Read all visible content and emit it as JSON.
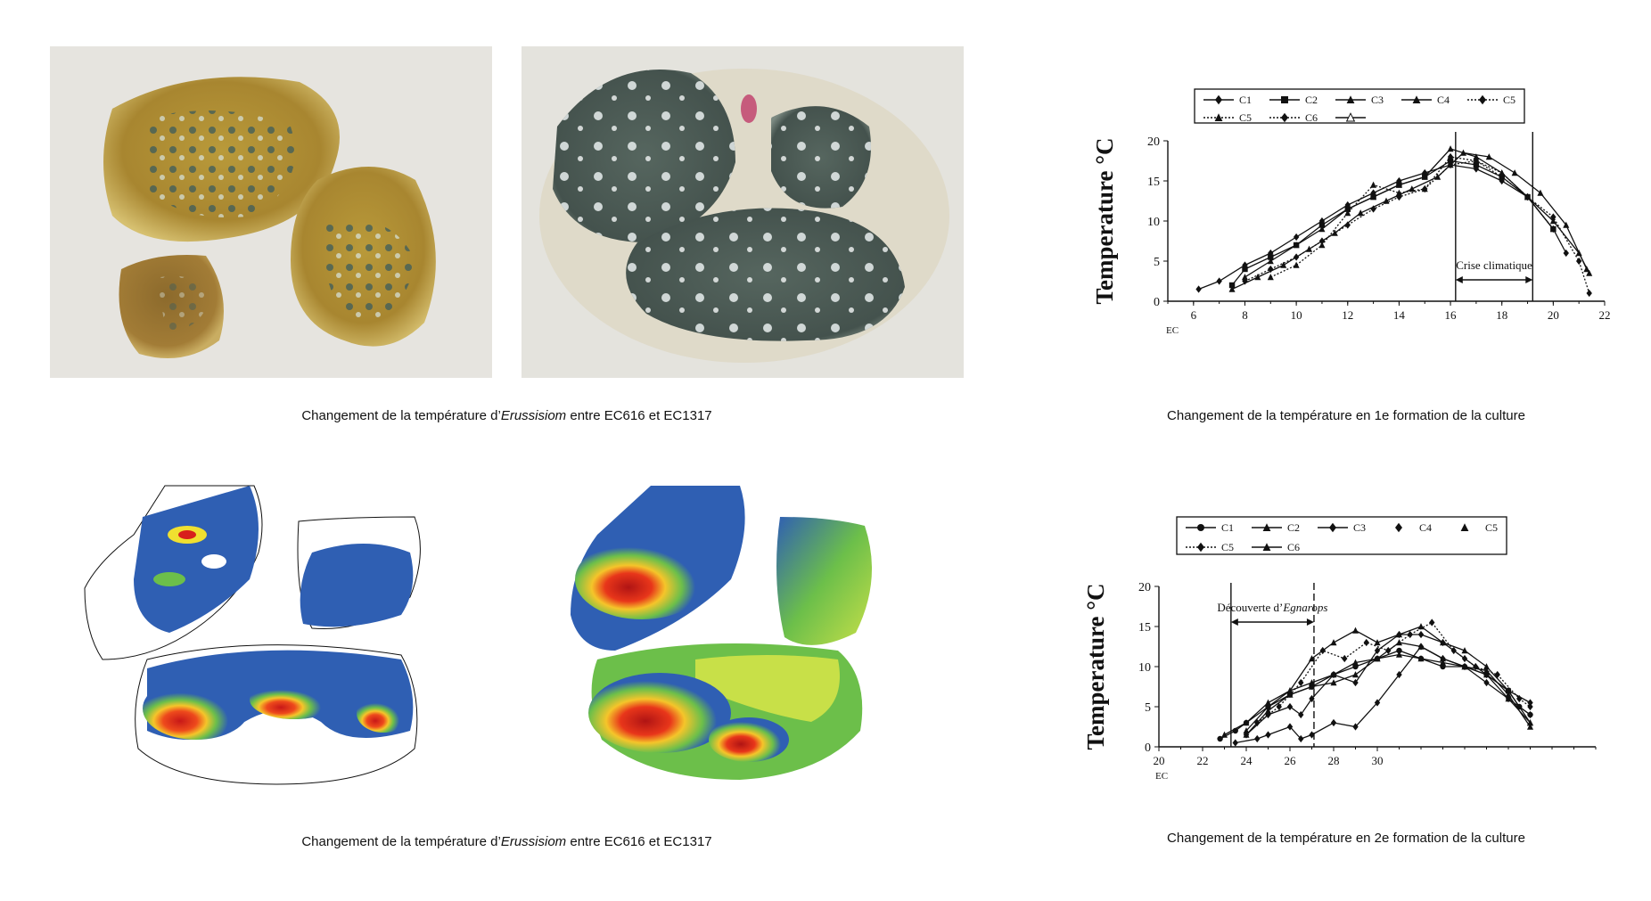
{
  "captions": {
    "photos_top": {
      "prefix": "Changement de la température d’",
      "italic": "Erussisiom",
      "suffix": " entre EC616 et EC1317"
    },
    "maps_bottom": {
      "prefix": "Changement de la température d’",
      "italic": "Erussisiom",
      "suffix": " entre EC616 et EC1317"
    },
    "chart1": "Changement de la température en 1e formation de la culture",
    "chart2": "Changement de la température en 2e formation de la culture"
  },
  "colors": {
    "photo_bg": "#e4e2dc",
    "fruit_yellow": "#b8952f",
    "fruit_brown": "#8a6a2a",
    "mold_green": "#4a5a55",
    "map_blue": "#2f5fb3",
    "map_green": "#6cbf4a",
    "map_yellow": "#f0e030",
    "map_orange": "#f08a20",
    "map_red": "#d8201c"
  },
  "chart_data": [
    {
      "type": "line",
      "title": "",
      "ylabel": "Temperature °C",
      "xlabel": "EC",
      "xlim": [
        5,
        22
      ],
      "ylim": [
        0,
        20
      ],
      "xticks": [
        6,
        8,
        10,
        12,
        14,
        16,
        18,
        20,
        22
      ],
      "yticks": [
        0,
        5,
        10,
        15,
        20
      ],
      "legend": [
        {
          "label": "C1",
          "marker": "diamond",
          "dash": "solid"
        },
        {
          "label": "C2",
          "marker": "square",
          "dash": "solid"
        },
        {
          "label": "C3",
          "marker": "triangle",
          "dash": "solid"
        },
        {
          "label": "C4",
          "marker": "triangle",
          "dash": "solid"
        },
        {
          "label": "C5",
          "marker": "diamond",
          "dash": "dotted"
        },
        {
          "label": "C5",
          "marker": "triangle",
          "dash": "dotted"
        },
        {
          "label": "C6",
          "marker": "diamond",
          "dash": "dotted"
        },
        {
          "label": "",
          "marker": "triangle-open",
          "dash": "solid"
        }
      ],
      "legend_position": "top",
      "annotation": {
        "text": "Crise climatique",
        "x_start": 16.2,
        "x_end": 19.2
      },
      "series": [
        {
          "name": "C1",
          "x": [
            6.2,
            7.0,
            8.0,
            9.0,
            10.0,
            11.0,
            12.0,
            13.0,
            14.0,
            15.0,
            16.0,
            17.0,
            18.0,
            19.0,
            20.0,
            20.5
          ],
          "y": [
            1.5,
            2.5,
            4.5,
            6,
            8,
            10,
            12,
            13.5,
            15,
            16,
            17,
            16.5,
            15,
            13,
            9,
            6
          ]
        },
        {
          "name": "C2",
          "x": [
            7.5,
            8.0,
            9.0,
            10.0,
            11.0,
            12.0,
            13.0,
            14.0,
            15.0,
            16.0,
            17.0,
            18.0,
            19.0,
            20.0
          ],
          "y": [
            2,
            4,
            5.5,
            7,
            9.5,
            11.5,
            13,
            14.5,
            15.5,
            17.5,
            17,
            15.5,
            13,
            9
          ]
        },
        {
          "name": "C3",
          "x": [
            7.5,
            8.5,
            9.5,
            10.5,
            11.5,
            12.5,
            13.5,
            14.5,
            15.5,
            16.5,
            17.5,
            18.5,
            19.5,
            20.5,
            21.3
          ],
          "y": [
            1.5,
            3,
            4.5,
            6.5,
            8.5,
            11,
            12.5,
            14,
            15.5,
            18.5,
            18,
            16,
            13.5,
            9.5,
            4
          ]
        },
        {
          "name": "C4",
          "x": [
            8.0,
            9.0,
            10.0,
            11.0,
            12.0,
            13.0,
            14.0,
            15.0,
            16.0,
            17.0,
            18.0,
            19.0,
            20.0,
            21.0,
            21.4
          ],
          "y": [
            3,
            5,
            7,
            9,
            11.5,
            13,
            14.5,
            15.5,
            19,
            18,
            16,
            13,
            10,
            6,
            3.5
          ]
        },
        {
          "name": "C5",
          "x": [
            8.0,
            9.0,
            10.0,
            11.0,
            12.0,
            13.0,
            14.0,
            15.0,
            16.0,
            17.0,
            18.0,
            19.0,
            20.0,
            21.0,
            21.4
          ],
          "y": [
            2.5,
            4,
            5.5,
            7.5,
            9.5,
            11.5,
            13,
            14,
            18,
            17.5,
            15.5,
            13,
            10.5,
            5,
            1
          ]
        },
        {
          "name": "C6",
          "x": [
            9.0,
            10.0,
            11.0,
            12.0,
            13.0,
            14.0,
            15.0,
            16.0,
            17.0,
            18.0,
            19.0,
            20.0
          ],
          "y": [
            3,
            4.5,
            7,
            11,
            14.5,
            13.5,
            14,
            17,
            17.5,
            16,
            13,
            9
          ]
        }
      ]
    },
    {
      "type": "line",
      "title": "",
      "ylabel": "Temperature °C",
      "xlabel": "EC",
      "xlim": [
        20,
        40
      ],
      "ylim": [
        0,
        20
      ],
      "xticks": [
        20,
        22,
        24,
        26,
        28,
        30
      ],
      "yticks": [
        0,
        5,
        10,
        15,
        20
      ],
      "legend": [
        {
          "label": "C1",
          "marker": "circle",
          "dash": "solid"
        },
        {
          "label": "C2",
          "marker": "triangle",
          "dash": "solid"
        },
        {
          "label": "C3",
          "marker": "diamond",
          "dash": "solid"
        },
        {
          "label": "C4",
          "marker": "diamond",
          "dash": "none"
        },
        {
          "label": "C5",
          "marker": "triangle",
          "dash": "none"
        },
        {
          "label": "C5",
          "marker": "diamond",
          "dash": "dotted"
        },
        {
          "label": "C6",
          "marker": "triangle",
          "dash": "solid"
        }
      ],
      "legend_position": "top",
      "annotation": {
        "text": "Découverte d’",
        "italic": "Egnarops",
        "x_start": 23.3,
        "x_end": 27.1
      },
      "series": [
        {
          "name": "C1",
          "x": [
            22.8,
            23.5,
            24.0,
            25.0,
            26.0,
            27.0,
            28.0,
            29.0,
            30.0,
            31.0,
            32.0,
            33.0,
            34.0,
            35.0,
            36.0,
            36.5,
            37.0
          ],
          "y": [
            1,
            2,
            3,
            5,
            6.5,
            7.5,
            9,
            10,
            11,
            12,
            11,
            10,
            10,
            9,
            7,
            5,
            4
          ]
        },
        {
          "name": "C2",
          "x": [
            23.0,
            24.0,
            25.0,
            26.0,
            27.0,
            28.0,
            29.0,
            30.0,
            31.0,
            32.0,
            33.0,
            34.0,
            35.0,
            36.0,
            37.0
          ],
          "y": [
            1.5,
            3,
            5.5,
            7,
            8,
            9,
            10.5,
            11,
            11.5,
            11,
            10.5,
            10,
            9,
            6,
            3
          ]
        },
        {
          "name": "C3",
          "x": [
            23.5,
            24.5,
            25.0,
            26.0,
            26.5,
            27.0,
            28.0,
            29.0,
            30.0,
            31.0,
            32.0,
            33.0,
            34.0,
            35.0,
            36.0,
            37.0
          ],
          "y": [
            0.5,
            1,
            1.5,
            2.5,
            1,
            1.5,
            3,
            2.5,
            5.5,
            9,
            12.5,
            11,
            10,
            8,
            6,
            4
          ]
        },
        {
          "name": "C4",
          "x": [
            24.0,
            25.0,
            26.0,
            26.5,
            27.0,
            28.0,
            29.0,
            30.0,
            31.0,
            32.0,
            33.0,
            34.0,
            35.0,
            36.0,
            37.0
          ],
          "y": [
            1.5,
            4,
            5,
            4,
            6,
            9,
            8,
            12,
            14,
            14,
            13,
            11,
            9,
            7,
            5.5
          ]
        },
        {
          "name": "C5",
          "x": [
            24.0,
            25.0,
            26.0,
            27.0,
            28.0,
            29.0,
            30.0,
            31.0,
            32.0,
            33.0,
            34.0,
            35.0,
            36.0,
            37.0
          ],
          "y": [
            2,
            5,
            7,
            11,
            13,
            14.5,
            13,
            14,
            15,
            13,
            12,
            10,
            7,
            3
          ]
        },
        {
          "name": "C5",
          "x": [
            24.5,
            25.5,
            26.5,
            27.5,
            28.5,
            29.5,
            30.5,
            31.5,
            32.5,
            33.5,
            34.5,
            35.5,
            36.5,
            37.0
          ],
          "y": [
            3,
            5,
            8,
            12,
            11,
            13,
            12,
            14,
            15.5,
            12,
            10,
            9,
            6,
            5
          ]
        },
        {
          "name": "C6",
          "x": [
            24.0,
            25.0,
            26.0,
            27.0,
            28.0,
            29.0,
            30.0,
            31.0,
            32.0,
            33.0,
            34.0,
            35.0,
            36.0,
            37.0
          ],
          "y": [
            1.5,
            4.5,
            6.5,
            7.5,
            8,
            9,
            11,
            13,
            12.5,
            11,
            10,
            9.5,
            6.5,
            2.5
          ]
        }
      ]
    }
  ]
}
